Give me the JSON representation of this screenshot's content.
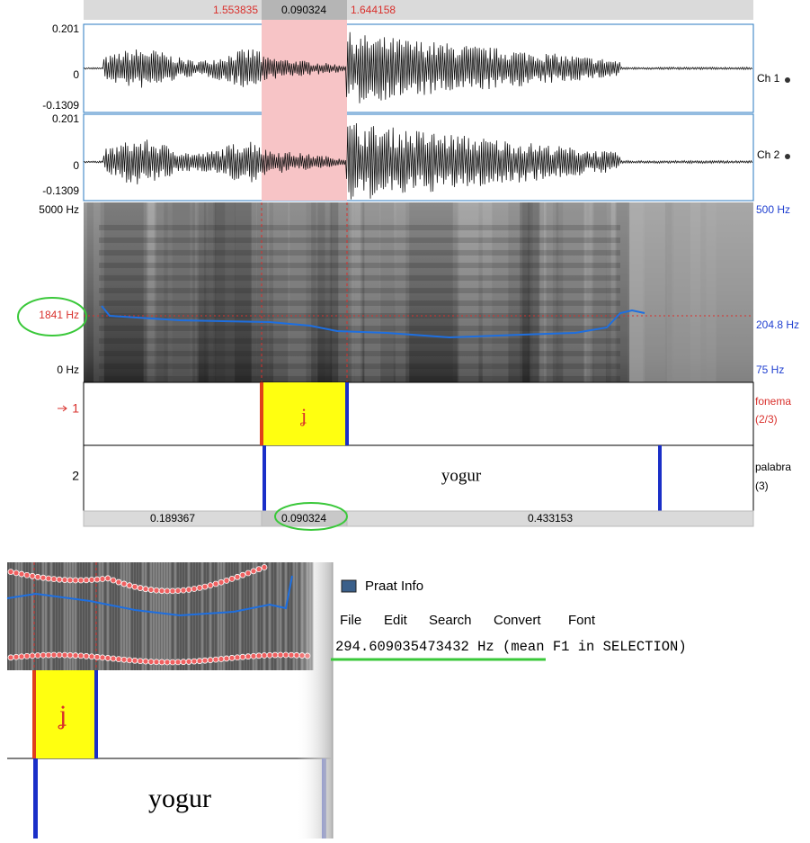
{
  "editor": {
    "selection": {
      "start": "1.553835",
      "duration": "0.090324",
      "end": "1.644158"
    },
    "channels": [
      {
        "max": "0.201",
        "zero": "0",
        "min": "-0.1309",
        "label": "Ch 1"
      },
      {
        "max": "0.201",
        "zero": "0",
        "min": "-0.1309",
        "label": "Ch 2"
      }
    ],
    "spectrogram": {
      "top": "5000 Hz",
      "cursor": "1841 Hz",
      "bottom": "0 Hz",
      "pitch_top": "500 Hz",
      "pitch_cursor": "204.8 Hz",
      "pitch_bottom": "75 Hz"
    },
    "tiers": [
      {
        "number": "1",
        "interval": "ʝ",
        "name": "fonema",
        "count": "(2/3)"
      },
      {
        "number": "2",
        "interval": "yogur",
        "name": "palabra",
        "count": "(3)"
      }
    ],
    "durations": [
      "0.189367",
      "0.090324",
      "0.433153"
    ]
  },
  "zoom": {
    "tiers": [
      "ʝ",
      "yogur"
    ]
  },
  "info_window": {
    "title": "Praat Info",
    "menu": [
      "File",
      "Edit",
      "Search",
      "Convert",
      "Font"
    ],
    "text": "294.609035473432 Hz (mean F1 in SELECTION)"
  }
}
